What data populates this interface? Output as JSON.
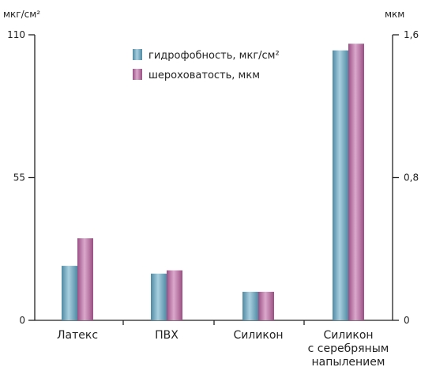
{
  "chart_data": {
    "type": "bar",
    "categories": [
      "Латекс",
      "ПВХ",
      "Силикон",
      "Силикон с серебряным напылением"
    ],
    "category_lines": [
      [
        "Латекс"
      ],
      [
        "ПВХ"
      ],
      [
        "Силикон"
      ],
      [
        "Силикон",
        "с серебряным",
        "напылением"
      ]
    ],
    "y_left": {
      "unit_label": "мкг/см²",
      "ylim": [
        0,
        110
      ],
      "ticks": [
        "0",
        "55",
        "110"
      ]
    },
    "y_right": {
      "unit_label": "мкм",
      "ylim": [
        0,
        1.6
      ],
      "ticks": [
        "0",
        "0,8",
        "1,6"
      ]
    },
    "series": [
      {
        "name": "гидрофобность, мкг/см²",
        "axis": "left",
        "color": "#6a9fb5",
        "values": [
          21,
          18,
          11,
          104
        ]
      },
      {
        "name": "шероховатость, мкм",
        "axis": "right",
        "color": "#b06a9a",
        "values": [
          0.46,
          0.28,
          0.16,
          1.55
        ]
      }
    ],
    "legend_position": "top-center",
    "grid": false
  }
}
